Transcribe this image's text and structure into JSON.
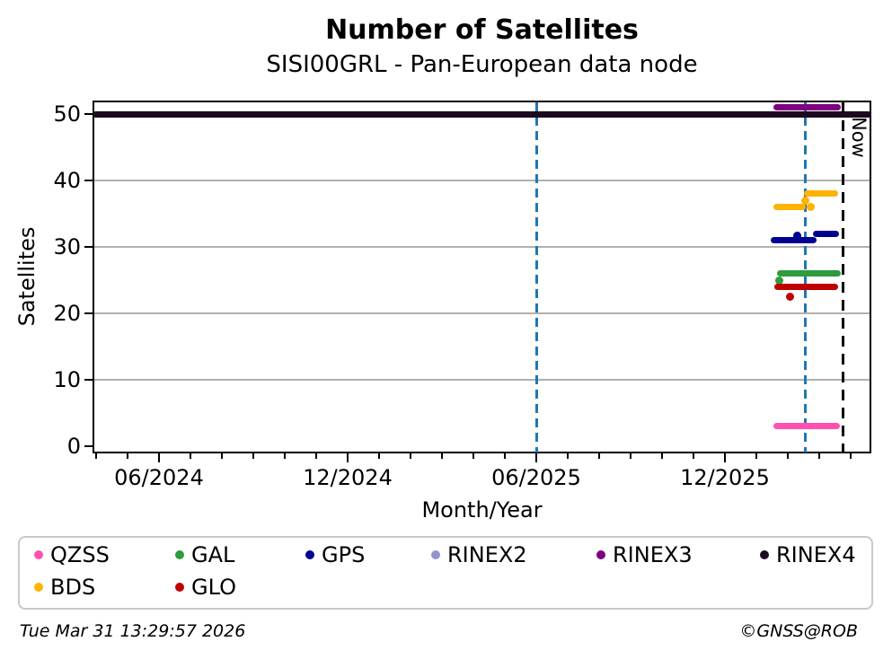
{
  "header": {
    "title": "Number of Satellites",
    "subtitle": "SISI00GRL - Pan-European data node"
  },
  "footer": {
    "timestamp": "Tue Mar 31 13:29:57 2026",
    "credit": "©GNSS@ROB"
  },
  "chart_data": {
    "type": "line",
    "title": "Number of Satellites",
    "subtitle": "SISI00GRL - Pan-European data node",
    "xlabel": "Month/Year",
    "ylabel": "Satellites",
    "x_unit": "months since 2024-06",
    "xlim": [
      -2.11,
      22.66
    ],
    "ylim": [
      -1.3,
      52
    ],
    "grid": "horizontal",
    "grid_color": "#b0b0b0",
    "legend_position": "bottom",
    "yticks": [
      0,
      10,
      20,
      30,
      40,
      50
    ],
    "xticks": [
      {
        "t": 0,
        "label": "06/2024"
      },
      {
        "t": 6,
        "label": "12/2024"
      },
      {
        "t": 12,
        "label": "06/2025"
      },
      {
        "t": 18,
        "label": "12/2025"
      }
    ],
    "annotations": {
      "now_label": "Now",
      "now_line_t": 21.77,
      "now_line_color": "#000000",
      "event_lines_t": [
        12,
        20.57
      ],
      "event_line_color": "#1f77b4"
    },
    "series": [
      {
        "name": "RINEX4",
        "color": "#1c0b1e",
        "segments": [
          {
            "t1": -2.11,
            "t2": 22.66,
            "value": 50
          }
        ],
        "points": []
      },
      {
        "name": "RINEX3",
        "color": "#800080",
        "segments": [
          {
            "t1": 19.54,
            "t2": 21.69,
            "value": 51
          }
        ],
        "points": []
      },
      {
        "name": "RINEX2",
        "color": "#9393ce",
        "segments": [],
        "points": []
      },
      {
        "name": "BDS",
        "color": "#ffb300",
        "segments": [
          {
            "t1": 19.54,
            "t2": 20.57,
            "value": 36
          },
          {
            "t1": 20.51,
            "t2": 21.6,
            "value": 38
          }
        ],
        "points": [
          {
            "t": 20.57,
            "value": 37
          },
          {
            "t": 20.74,
            "value": 36
          }
        ]
      },
      {
        "name": "GPS",
        "color": "#000090",
        "segments": [
          {
            "t1": 19.46,
            "t2": 20.91,
            "value": 31
          },
          {
            "t1": 20.8,
            "t2": 21.63,
            "value": 32
          }
        ],
        "points": [
          {
            "t": 20.31,
            "value": 31.7
          }
        ]
      },
      {
        "name": "GAL",
        "color": "#2e9b3d",
        "segments": [
          {
            "t1": 19.66,
            "t2": 21.69,
            "value": 26
          }
        ],
        "points": [
          {
            "t": 19.74,
            "value": 25
          }
        ]
      },
      {
        "name": "GLO",
        "color": "#c00000",
        "segments": [
          {
            "t1": 19.57,
            "t2": 21.6,
            "value": 24
          }
        ],
        "points": [
          {
            "t": 20.06,
            "value": 22.5
          }
        ]
      },
      {
        "name": "QZSS",
        "color": "#ff50b0",
        "segments": [
          {
            "t1": 19.54,
            "t2": 21.66,
            "value": 3
          }
        ],
        "points": []
      }
    ],
    "legend": [
      {
        "label": "QZSS",
        "color": "#ff50b0"
      },
      {
        "label": "GAL",
        "color": "#2e9b3d"
      },
      {
        "label": "GPS",
        "color": "#000090"
      },
      {
        "label": "RINEX2",
        "color": "#9393ce"
      },
      {
        "label": "RINEX3",
        "color": "#800080"
      },
      {
        "label": "RINEX4",
        "color": "#1c0b1e"
      },
      {
        "label": "BDS",
        "color": "#ffb300"
      },
      {
        "label": "GLO",
        "color": "#c00000"
      }
    ]
  }
}
